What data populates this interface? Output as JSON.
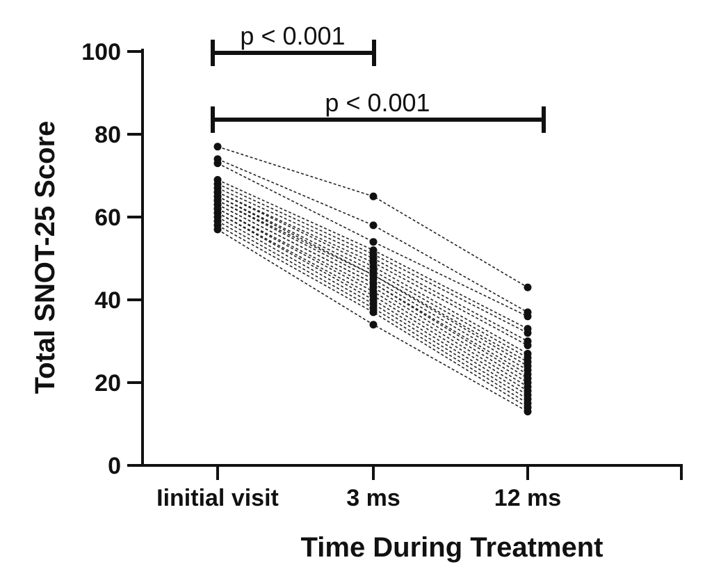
{
  "chart_data": {
    "type": "line",
    "title": "",
    "xlabel": "Time During Treatment",
    "ylabel": "Total SNOT-25 Score",
    "categories": [
      "Iinitial visit",
      "3 ms",
      "12 ms"
    ],
    "ylim": [
      0,
      100
    ],
    "yticks": [
      0,
      20,
      40,
      60,
      80,
      100
    ],
    "grid": false,
    "legend": "none",
    "line_style": "dashed",
    "marker": "circle",
    "color": "#111111",
    "subjects": [
      [
        77,
        65,
        43
      ],
      [
        74,
        58,
        37
      ],
      [
        73,
        54,
        36
      ],
      [
        69,
        52,
        33
      ],
      [
        68,
        51,
        32
      ],
      [
        67,
        50,
        30
      ],
      [
        66,
        49,
        29
      ],
      [
        66,
        48,
        27
      ],
      [
        65,
        47,
        26
      ],
      [
        65,
        46,
        25
      ],
      [
        64,
        46,
        24
      ],
      [
        64,
        45,
        23
      ],
      [
        63,
        44,
        22
      ],
      [
        63,
        44,
        21
      ],
      [
        62,
        43,
        20
      ],
      [
        62,
        42,
        19
      ],
      [
        61,
        41,
        18
      ],
      [
        61,
        40,
        17
      ],
      [
        60,
        39,
        16
      ],
      [
        59,
        38,
        15
      ],
      [
        58,
        37,
        14
      ],
      [
        57,
        34,
        13
      ]
    ],
    "annotations": [
      {
        "text": "p < 0.001",
        "from": 0,
        "to": 1
      },
      {
        "text": "p < 0.001",
        "from": 0,
        "to": 2
      }
    ]
  }
}
